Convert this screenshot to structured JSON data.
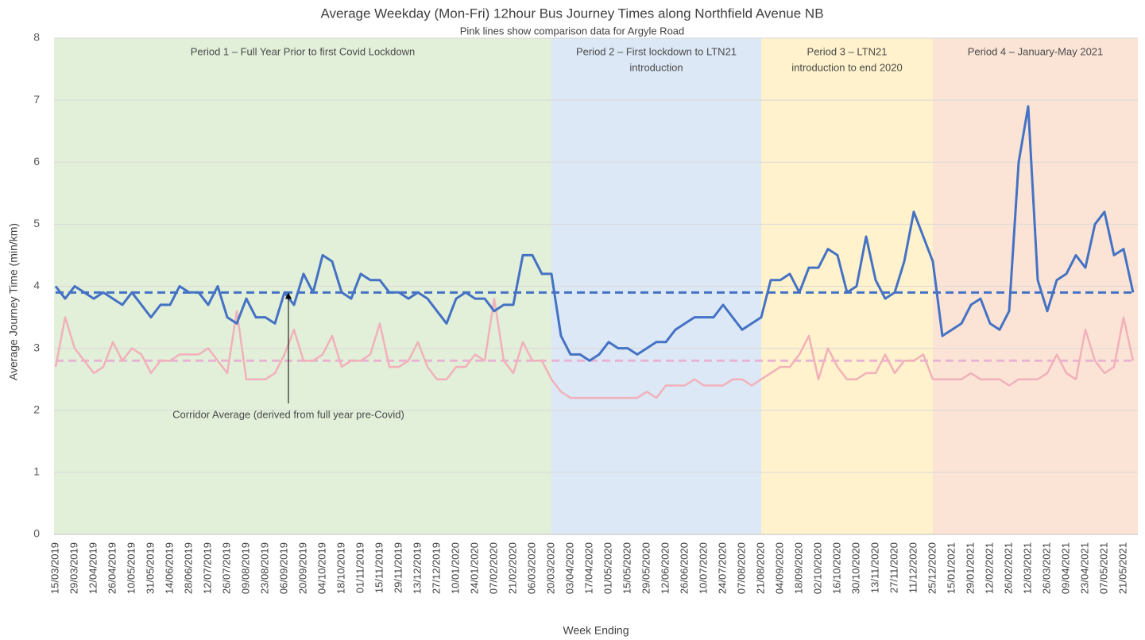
{
  "chart_data": {
    "type": "line",
    "title": "Average Weekday (Mon-Fri) 12hour Bus Journey Times along Northfield Avenue NB",
    "subtitle": "Pink lines show comparison data for Argyle Road",
    "y_label": "Average Journey Time (min/km)",
    "x_label": "Week Ending",
    "categories": [
      "15/03/2019",
      null,
      "29/03/2019",
      null,
      "12/04/2019",
      null,
      "26/04/2019",
      null,
      "10/05/2019",
      null,
      "31/05/2019",
      null,
      "14/06/2019",
      null,
      "28/06/2019",
      null,
      "12/07/2019",
      null,
      "26/07/2019",
      null,
      "09/08/2019",
      null,
      "23/08/2019",
      null,
      "06/09/2019",
      null,
      "20/09/2019",
      null,
      "04/10/2019",
      null,
      "18/10/2019",
      null,
      "01/11/2019",
      null,
      "15/11/2019",
      null,
      "29/11/2019",
      null,
      "13/12/2019",
      null,
      "27/12/2019",
      null,
      "10/01/2020",
      null,
      "24/01/2020",
      null,
      "07/02/2020",
      null,
      "21/02/2020",
      null,
      "06/03/2020",
      null,
      "20/03/2020",
      null,
      "03/04/2020",
      null,
      "17/04/2020",
      null,
      "01/05/2020",
      null,
      "15/05/2020",
      null,
      "29/05/2020",
      null,
      "12/06/2020",
      null,
      "26/06/2020",
      null,
      "10/07/2020",
      null,
      "24/07/2020",
      null,
      "07/08/2020",
      null,
      "21/08/2020",
      null,
      "04/09/2020",
      null,
      "18/09/2020",
      null,
      "02/10/2020",
      null,
      "16/10/2020",
      null,
      "30/10/2020",
      null,
      "13/11/2020",
      null,
      "27/11/2020",
      null,
      "11/12/2020",
      null,
      "25/12/2020",
      null,
      "15/01/2021",
      null,
      "29/01/2021",
      null,
      "12/02/2021",
      null,
      "26/02/2021",
      null,
      "12/03/2021",
      null,
      "26/03/2021",
      null,
      "09/04/2021",
      null,
      "23/04/2021",
      null,
      "07/05/2021",
      null,
      "21/05/2021",
      null
    ],
    "series": [
      {
        "color": "#4472c4",
        "values": [
          4.0,
          3.8,
          4.0,
          3.9,
          3.8,
          3.9,
          3.8,
          3.7,
          3.9,
          3.7,
          3.5,
          3.7,
          3.7,
          4.0,
          3.9,
          3.9,
          3.7,
          4.0,
          3.5,
          3.4,
          3.8,
          3.5,
          3.5,
          3.4,
          3.9,
          3.7,
          4.2,
          3.9,
          4.5,
          4.4,
          3.9,
          3.8,
          4.2,
          4.1,
          4.1,
          3.9,
          3.9,
          3.8,
          3.9,
          3.8,
          3.6,
          3.4,
          3.8,
          3.9,
          3.8,
          3.8,
          3.6,
          3.7,
          3.7,
          4.5,
          4.5,
          4.2,
          4.2,
          3.2,
          2.9,
          2.9,
          2.8,
          2.9,
          3.1,
          3.0,
          3.0,
          2.9,
          3.0,
          3.1,
          3.1,
          3.3,
          3.4,
          3.5,
          3.5,
          3.5,
          3.7,
          3.5,
          3.3,
          3.4,
          3.5,
          4.1,
          4.1,
          4.2,
          3.9,
          4.3,
          4.3,
          4.6,
          4.5,
          3.9,
          4.0,
          4.8,
          4.1,
          3.8,
          3.9,
          4.4,
          5.2,
          4.8,
          4.4,
          3.2,
          3.3,
          3.4,
          3.7,
          3.8,
          3.4,
          3.3,
          3.6,
          6.0,
          6.9,
          4.1,
          3.6,
          4.1,
          4.2,
          4.5,
          4.3,
          5.0,
          5.2,
          4.5,
          4.6,
          3.9
        ]
      },
      {
        "color": "#f2b1ba",
        "values": [
          2.7,
          3.5,
          3.0,
          2.8,
          2.6,
          2.7,
          3.1,
          2.8,
          3.0,
          2.9,
          2.6,
          2.8,
          2.8,
          2.9,
          2.9,
          2.9,
          3.0,
          2.8,
          2.6,
          3.6,
          2.5,
          2.5,
          2.5,
          2.6,
          2.9,
          3.3,
          2.8,
          2.8,
          2.9,
          3.2,
          2.7,
          2.8,
          2.8,
          2.9,
          3.4,
          2.7,
          2.7,
          2.8,
          3.1,
          2.7,
          2.5,
          2.5,
          2.7,
          2.7,
          2.9,
          2.8,
          3.8,
          2.8,
          2.6,
          3.1,
          2.8,
          2.8,
          2.5,
          2.3,
          2.2,
          2.2,
          2.2,
          2.2,
          2.2,
          2.2,
          2.2,
          2.2,
          2.3,
          2.2,
          2.4,
          2.4,
          2.4,
          2.5,
          2.4,
          2.4,
          2.4,
          2.5,
          2.5,
          2.4,
          2.5,
          2.6,
          2.7,
          2.7,
          2.9,
          3.2,
          2.5,
          3.0,
          2.7,
          2.5,
          2.5,
          2.6,
          2.6,
          2.9,
          2.6,
          2.8,
          2.8,
          2.9,
          2.5,
          2.5,
          2.5,
          2.5,
          2.6,
          2.5,
          2.5,
          2.5,
          2.4,
          2.5,
          2.5,
          2.5,
          2.6,
          2.9,
          2.6,
          2.5,
          3.3,
          2.8,
          2.6,
          2.7,
          3.5,
          2.8
        ]
      }
    ],
    "reference_lines": [
      {
        "value": 3.9,
        "color": "#4472c4"
      },
      {
        "value": 2.8,
        "color": "#e9b3d3"
      }
    ],
    "annotation": {
      "text": "Corridor Average (derived from full year pre-Covid)",
      "at": "06/09/2019"
    },
    "periods": [
      {
        "lines": [
          "Period 1 – Full Year Prior to first Covid Lockdown"
        ],
        "start": "15/03/2019",
        "color": "#e2efd9"
      },
      {
        "lines": [
          "Period 2 – First lockdown to LTN21",
          "introduction"
        ],
        "start": "20/03/2020",
        "color": "#dce8f5"
      },
      {
        "lines": [
          "Period 3 – LTN21",
          "introduction to end 2020"
        ],
        "start": "21/08/2020",
        "color": "#fff2cc"
      },
      {
        "lines": [
          "Period 4 – January-May 2021"
        ],
        "start": "25/12/2020",
        "color": "#fbe4d6"
      }
    ],
    "ylim": [
      0,
      8
    ],
    "yticks": [
      0,
      1,
      2,
      3,
      4,
      5,
      6,
      7,
      8
    ],
    "grid": true
  }
}
